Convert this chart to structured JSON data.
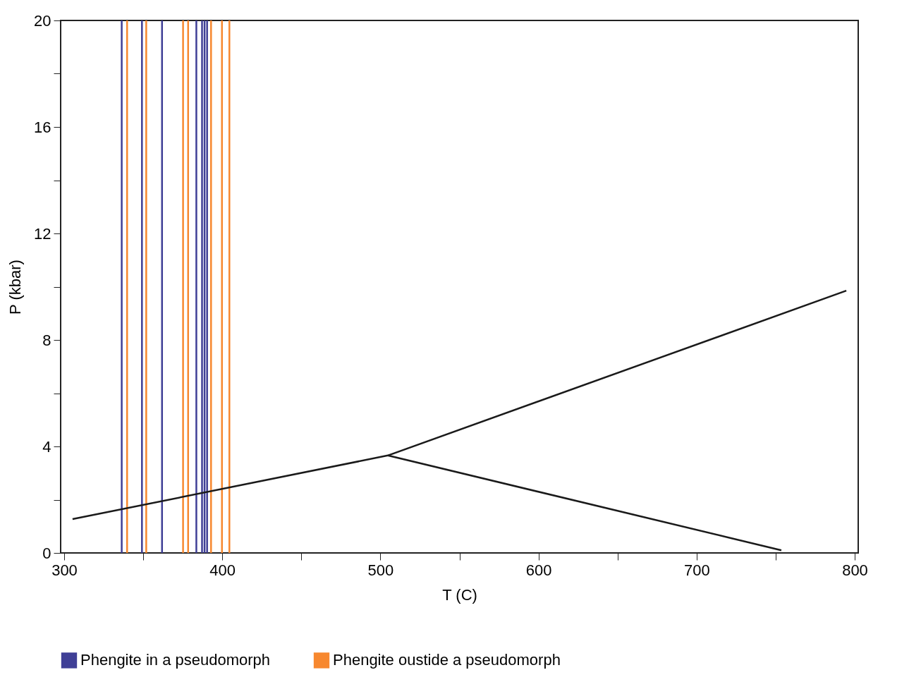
{
  "chart_data": {
    "type": "line",
    "xlabel": "T (C)",
    "ylabel": "P (kbar)",
    "xlim": [
      300,
      800
    ],
    "ylim": [
      0,
      20
    ],
    "xticks": [
      300,
      {
        "value": 350,
        "label": null
      },
      400,
      {
        "value": 450,
        "label": null
      },
      500,
      {
        "value": 550,
        "label": null
      },
      600,
      {
        "value": 650,
        "label": null
      },
      700,
      {
        "value": 750,
        "label": null
      },
      800
    ],
    "yticks": [
      0,
      {
        "value": 2,
        "label": null
      },
      4,
      {
        "value": 6,
        "label": null
      },
      8,
      {
        "value": 10,
        "label": null
      },
      12,
      {
        "value": 14,
        "label": null
      },
      16,
      {
        "value": 18,
        "label": null
      },
      20
    ],
    "grid": false,
    "legend": "bottom",
    "series": [
      {
        "name": "Phengite in a pseudomorph",
        "type": "bar",
        "color": "#3f3f96",
        "x": [
          336.4,
          349.2,
          361.9,
          383.6,
          387.2,
          388.8,
          390.4
        ],
        "values": [
          20,
          20,
          20,
          20,
          20,
          20,
          20
        ]
      },
      {
        "name": "Phengite oustide a pseudomorph",
        "type": "bar",
        "color": "#f7882f",
        "x": [
          339.8,
          351.9,
          375.2,
          378.4,
          392.9,
          399.8,
          404.5
        ],
        "values": [
          20,
          20,
          20,
          20,
          20,
          20,
          20
        ]
      },
      {
        "color": "#1a1a1a",
        "x": [
          305.3,
          504.7,
          794.7
        ],
        "values": [
          1.27,
          3.66,
          9.85
        ]
      },
      {
        "color": "#1a1a1a",
        "x": [
          504.7,
          753.6
        ],
        "values": [
          3.66,
          0.1
        ]
      }
    ]
  }
}
